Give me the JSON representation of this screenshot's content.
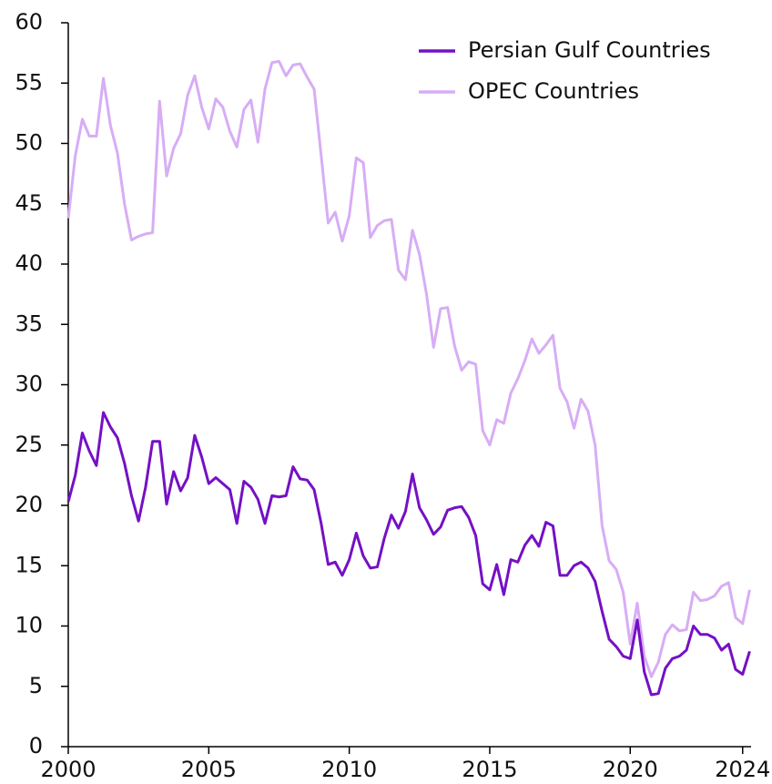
{
  "chart_data": {
    "type": "line",
    "x": [
      2000,
      2000.25,
      2000.5,
      2000.75,
      2001,
      2001.25,
      2001.5,
      2001.75,
      2002,
      2002.25,
      2002.5,
      2002.75,
      2003,
      2003.25,
      2003.5,
      2003.75,
      2004,
      2004.25,
      2004.5,
      2004.75,
      2005,
      2005.25,
      2005.5,
      2005.75,
      2006,
      2006.25,
      2006.5,
      2006.75,
      2007,
      2007.25,
      2007.5,
      2007.75,
      2008,
      2008.25,
      2008.5,
      2008.75,
      2009,
      2009.25,
      2009.5,
      2009.75,
      2010,
      2010.25,
      2010.5,
      2010.75,
      2011,
      2011.25,
      2011.5,
      2011.75,
      2012,
      2012.25,
      2012.5,
      2012.75,
      2013,
      2013.25,
      2013.5,
      2013.75,
      2014,
      2014.25,
      2014.5,
      2014.75,
      2015,
      2015.25,
      2015.5,
      2015.75,
      2016,
      2016.25,
      2016.5,
      2016.75,
      2017,
      2017.25,
      2017.5,
      2017.75,
      2018,
      2018.25,
      2018.5,
      2018.75,
      2019,
      2019.25,
      2019.5,
      2019.75,
      2020,
      2020.25,
      2020.5,
      2020.75,
      2021,
      2021.25,
      2021.5,
      2021.75,
      2022,
      2022.25,
      2022.5,
      2022.75,
      2023,
      2023.25,
      2023.5,
      2023.75,
      2024,
      2024.25
    ],
    "series": [
      {
        "name": "Persian Gulf Countries",
        "color": "#7510c4",
        "values": [
          20.3,
          22.5,
          26,
          24.5,
          23.3,
          27.7,
          26.5,
          25.6,
          23.5,
          20.8,
          18.7,
          21.5,
          25.3,
          25.3,
          20.1,
          22.8,
          21.2,
          22.3,
          25.8,
          24,
          21.8,
          22.3,
          21.8,
          21.3,
          18.5,
          22,
          21.5,
          20.5,
          18.5,
          20.8,
          20.7,
          20.8,
          23.2,
          22.2,
          22.1,
          21.3,
          18.5,
          15.1,
          15.3,
          14.2,
          15.5,
          17.7,
          15.8,
          14.8,
          14.9,
          17.3,
          19.2,
          18.1,
          19.5,
          22.6,
          19.8,
          18.8,
          17.6,
          18.2,
          19.6,
          19.8,
          19.9,
          19,
          17.5,
          13.5,
          13,
          15.1,
          12.6,
          15.5,
          15.3,
          16.7,
          17.5,
          16.6,
          18.6,
          18.3,
          14.2,
          14.2,
          15,
          15.3,
          14.8,
          13.7,
          11.2,
          8.9,
          8.3,
          7.5,
          7.3,
          10.5,
          6.2,
          4.3,
          4.4,
          6.5,
          7.3,
          7.5,
          8,
          10,
          9.3,
          9.3,
          9,
          8,
          8.5,
          6.4,
          6,
          7.9
        ]
      },
      {
        "name": "OPEC Countries",
        "color": "#d7adf5",
        "values": [
          43.8,
          49,
          52,
          50.6,
          50.6,
          55.4,
          51.5,
          49.2,
          45,
          42,
          42.3,
          42.5,
          42.6,
          53.5,
          47.3,
          49.6,
          50.8,
          54,
          55.6,
          53,
          51.2,
          53.7,
          53,
          51,
          49.7,
          52.8,
          53.6,
          50.1,
          54.5,
          56.7,
          56.8,
          55.6,
          56.5,
          56.6,
          55.5,
          54.5,
          49,
          43.4,
          44.3,
          41.9,
          44,
          48.8,
          48.4,
          42.2,
          43.2,
          43.6,
          43.7,
          39.5,
          38.7,
          42.8,
          40.8,
          37.5,
          33.1,
          36.3,
          36.4,
          33.2,
          31.2,
          31.9,
          31.7,
          26.2,
          25,
          27.1,
          26.8,
          29.3,
          30.5,
          32,
          33.8,
          32.6,
          33.3,
          34.1,
          29.7,
          28.6,
          26.4,
          28.8,
          27.8,
          25,
          18.3,
          15.4,
          14.7,
          12.8,
          8.5,
          11.9,
          7.5,
          5.8,
          7,
          9.3,
          10.1,
          9.6,
          9.7,
          12.8,
          12.1,
          12.2,
          12.5,
          13.3,
          13.6,
          10.7,
          10.2,
          13
        ]
      }
    ],
    "xlim": [
      2000,
      2024.3
    ],
    "xticks": [
      2000,
      2005,
      2010,
      2015,
      2020,
      2024
    ],
    "ylim": [
      0,
      60
    ],
    "yticks": [
      0,
      5,
      10,
      15,
      20,
      25,
      30,
      35,
      40,
      45,
      50,
      55,
      60
    ],
    "legend": "upper right"
  }
}
